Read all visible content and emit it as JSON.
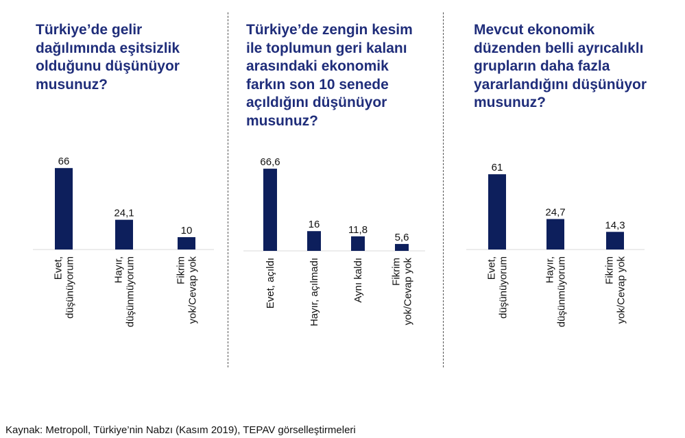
{
  "panels": [
    {
      "title_lines": [
        "Türkiye’de gelir",
        "dağılımında eşitsizlik",
        "olduğunu düşünüyor",
        "musunuz?"
      ]
    },
    {
      "title_lines": [
        "Türkiye’de zengin kesim",
        "ile toplumun geri kalanı",
        "arasındaki ekonomik",
        "farkın son 10 senede",
        "açıldığını düşünüyor",
        "musunuz?"
      ]
    },
    {
      "title_lines": [
        "Mevcut ekonomik",
        "düzenden belli ayrıcalıklı",
        "grupların daha fazla",
        "yararlandığını düşünüyor",
        "musunuz?"
      ]
    }
  ],
  "chart_data": [
    {
      "type": "bar",
      "categories": [
        [
          "Evet,",
          "düşünüyorum"
        ],
        [
          "Hayır,",
          "düşünmüyorum"
        ],
        [
          "Fikrim",
          "yok/Cevap yok"
        ]
      ],
      "values": [
        66,
        24.1,
        10
      ],
      "value_labels": [
        "66",
        "24,1",
        "10"
      ],
      "bar_color": "#0d1f5c"
    },
    {
      "type": "bar",
      "categories": [
        [
          "Evet, açıldı"
        ],
        [
          "Hayır, açılmadı"
        ],
        [
          "Aynı kaldı"
        ],
        [
          "Fikrim",
          "yok/Cevap yok"
        ]
      ],
      "values": [
        66.6,
        16,
        11.8,
        5.6
      ],
      "value_labels": [
        "66,6",
        "16",
        "11,8",
        "5,6"
      ],
      "bar_color": "#0d1f5c"
    },
    {
      "type": "bar",
      "categories": [
        [
          "Evet,",
          "düşünüyorum"
        ],
        [
          "Hayır,",
          "düşünmüyorum"
        ],
        [
          "Fikrim",
          "yok/Cevap yok"
        ]
      ],
      "values": [
        61,
        24.7,
        14.3
      ],
      "value_labels": [
        "61",
        "24,7",
        "14,3"
      ],
      "bar_color": "#0d1f5c"
    }
  ],
  "source": "Kaynak: Metropoll, Türkiye’nin Nabzı (Kasım 2019), TEPAV görselleştirmeleri"
}
